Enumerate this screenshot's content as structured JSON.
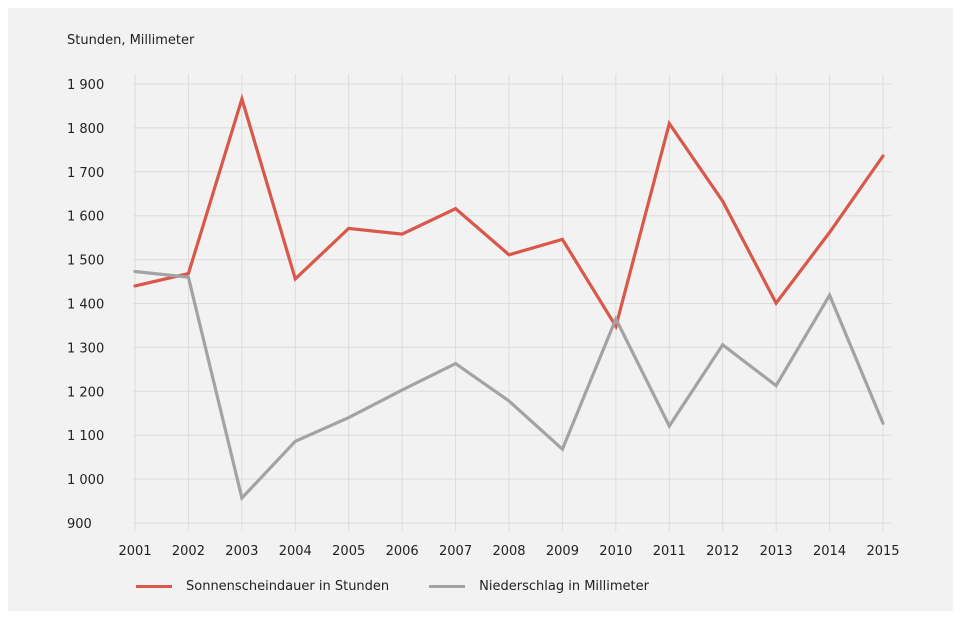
{
  "colors": {
    "background_panel": "#f2f2f2",
    "grid": "#dcdcdc",
    "sunshine": "#d9584a",
    "precipitation": "#a3a3a6"
  },
  "chart_data": {
    "type": "line",
    "unit_label": "Stunden, Millimeter",
    "x": [
      "2001",
      "2002",
      "2003",
      "2004",
      "2005",
      "2006",
      "2007",
      "2008",
      "2009",
      "2010",
      "2011",
      "2012",
      "2013",
      "2014",
      "2015"
    ],
    "ylim": [
      900,
      1900
    ],
    "yticks": [
      900,
      1000,
      1100,
      1200,
      1300,
      1400,
      1500,
      1600,
      1700,
      1800,
      1900
    ],
    "ytick_labels": [
      "900",
      "1 000",
      "1 100",
      "1 200",
      "1 300",
      "1 400",
      "1 500",
      "1 600",
      "1 700",
      "1 800",
      "1 900"
    ],
    "grid": true,
    "legend_position": "bottom-left",
    "series": [
      {
        "name": "Sonnenscheindauer in Stunden",
        "color": "#d9584a",
        "values": [
          1440,
          1468,
          1866,
          1456,
          1571,
          1558,
          1616,
          1511,
          1546,
          1348,
          1810,
          1633,
          1401,
          1562,
          1736
        ]
      },
      {
        "name": "Niederschlag in Millimeter",
        "color": "#a3a3a6",
        "values": [
          1473,
          1460,
          957,
          1086,
          1140,
          1203,
          1263,
          1178,
          1068,
          1365,
          1121,
          1306,
          1213,
          1419,
          1127
        ]
      }
    ]
  }
}
